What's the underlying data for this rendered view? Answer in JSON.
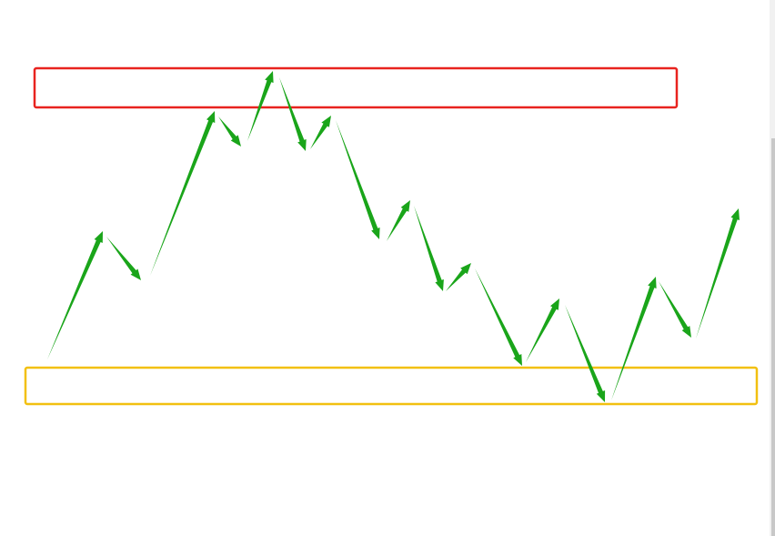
{
  "colors": {
    "resistance_zone": "#e8231f",
    "support_zone": "#f2c010",
    "arrow": "#1aa51a",
    "background": "#ffffff"
  },
  "zones": [
    {
      "name": "resistance-zone",
      "color_key": "resistance_zone"
    },
    {
      "name": "support-zone",
      "color_key": "support_zone"
    }
  ],
  "icons": {
    "arrow": "arrow-icon"
  }
}
